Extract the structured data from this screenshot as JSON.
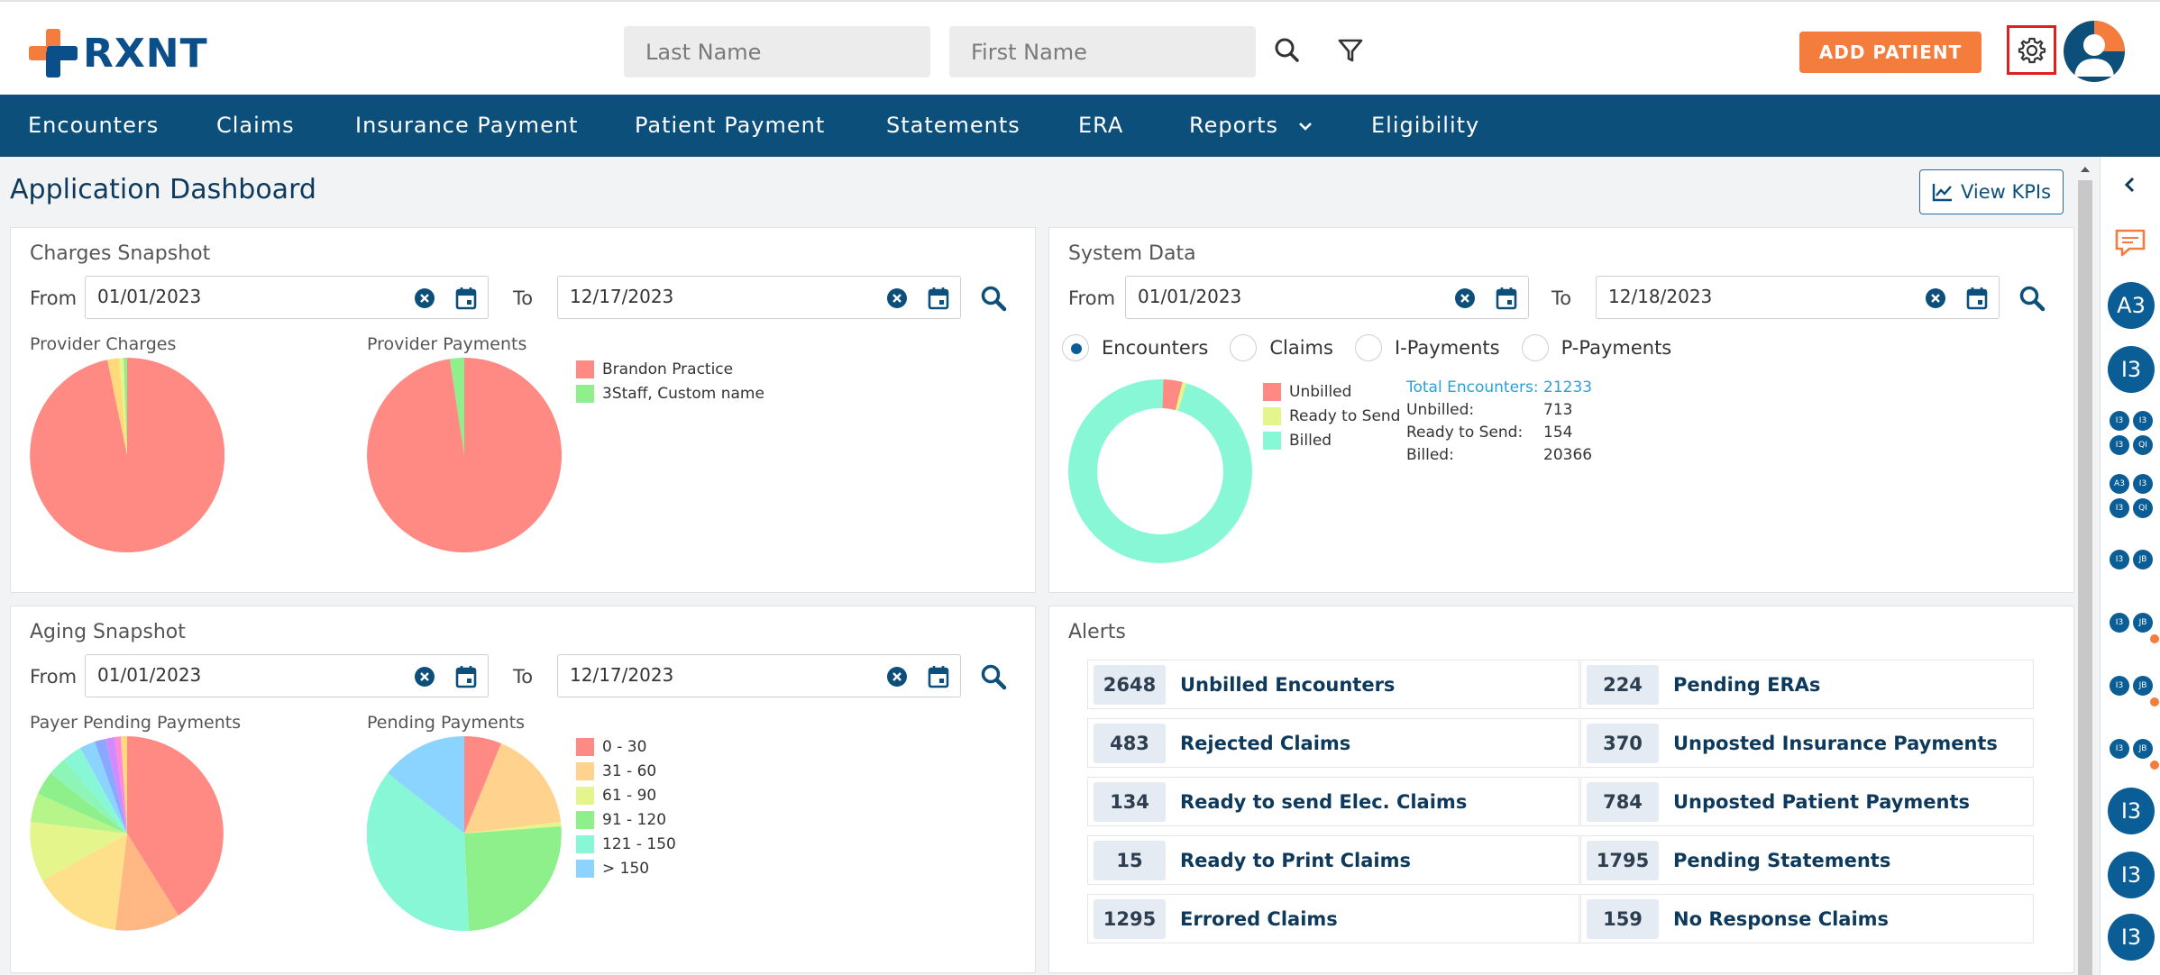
{
  "brand": {
    "name": "RXNT"
  },
  "header": {
    "last_name_placeholder": "Last Name",
    "first_name_placeholder": "First Name",
    "add_patient_label": "ADD PATIENT"
  },
  "nav": {
    "items": [
      "Encounters",
      "Claims",
      "Insurance Payment",
      "Patient Payment",
      "Statements",
      "ERA",
      "Reports",
      "Eligibility"
    ]
  },
  "page": {
    "title": "Application Dashboard",
    "view_kpis_label": "View KPIs"
  },
  "charges_snapshot": {
    "title": "Charges Snapshot",
    "from_label": "From",
    "to_label": "To",
    "from_date": "01/01/2023",
    "to_date": "12/17/2023",
    "provider_charges_label": "Provider Charges",
    "provider_payments_label": "Provider Payments",
    "legend": [
      {
        "label": "Brandon Practice",
        "color": "#ff8a84"
      },
      {
        "label": "3Staff, Custom name",
        "color": "#8ef08a"
      }
    ]
  },
  "system_data": {
    "title": "System Data",
    "from_label": "From",
    "to_label": "To",
    "from_date": "01/01/2023",
    "to_date": "12/18/2023",
    "radios": [
      "Encounters",
      "Claims",
      "I-Payments",
      "P-Payments"
    ],
    "selected_radio": "Encounters",
    "legend": [
      {
        "label": "Unbilled",
        "color": "#ff8a84"
      },
      {
        "label": "Ready to Send",
        "color": "#e4f58c"
      },
      {
        "label": "Billed",
        "color": "#88f7d6"
      }
    ],
    "stats": [
      {
        "k": "Total Encounters:",
        "v": "21233"
      },
      {
        "k": "Unbilled:",
        "v": "713"
      },
      {
        "k": "Ready to Send:",
        "v": "154"
      },
      {
        "k": "Billed:",
        "v": "20366"
      }
    ]
  },
  "aging_snapshot": {
    "title": "Aging Snapshot",
    "from_label": "From",
    "to_label": "To",
    "from_date": "01/01/2023",
    "to_date": "12/17/2023",
    "payer_pending_label": "Payer Pending Payments",
    "pending_payments_label": "Pending Payments",
    "legend": [
      {
        "label": "0 - 30",
        "color": "#ff8a84"
      },
      {
        "label": "31 - 60",
        "color": "#ffd28e"
      },
      {
        "label": "61 - 90",
        "color": "#e4f58c"
      },
      {
        "label": "91 - 120",
        "color": "#8ef08a"
      },
      {
        "label": "121 - 150",
        "color": "#88f7d6"
      },
      {
        "label": "> 150",
        "color": "#8ad4ff"
      }
    ]
  },
  "alerts": {
    "title": "Alerts",
    "left": [
      {
        "count": "2648",
        "label": "Unbilled Encounters"
      },
      {
        "count": "483",
        "label": "Rejected Claims"
      },
      {
        "count": "134",
        "label": "Ready to send Elec. Claims"
      },
      {
        "count": "15",
        "label": "Ready to Print Claims"
      },
      {
        "count": "1295",
        "label": "Errored Claims"
      }
    ],
    "right": [
      {
        "count": "224",
        "label": "Pending ERAs"
      },
      {
        "count": "370",
        "label": "Unposted Insurance Payments"
      },
      {
        "count": "784",
        "label": "Unposted Patient Payments"
      },
      {
        "count": "1795",
        "label": "Pending Statements"
      },
      {
        "count": "159",
        "label": "No Response Claims"
      }
    ]
  },
  "rail": {
    "big_top": [
      "A3",
      "I3"
    ],
    "big_bottom": [
      "I3",
      "I3",
      "I3"
    ],
    "small": [
      [
        "I3",
        "I3",
        "I3",
        "QI"
      ],
      [
        "A3",
        "I3",
        "I3",
        "QI"
      ],
      [
        "I3",
        "JB"
      ],
      [
        "I3",
        "JB"
      ],
      [
        "I3",
        "JB"
      ],
      [
        "I3",
        "JB"
      ]
    ]
  }
}
